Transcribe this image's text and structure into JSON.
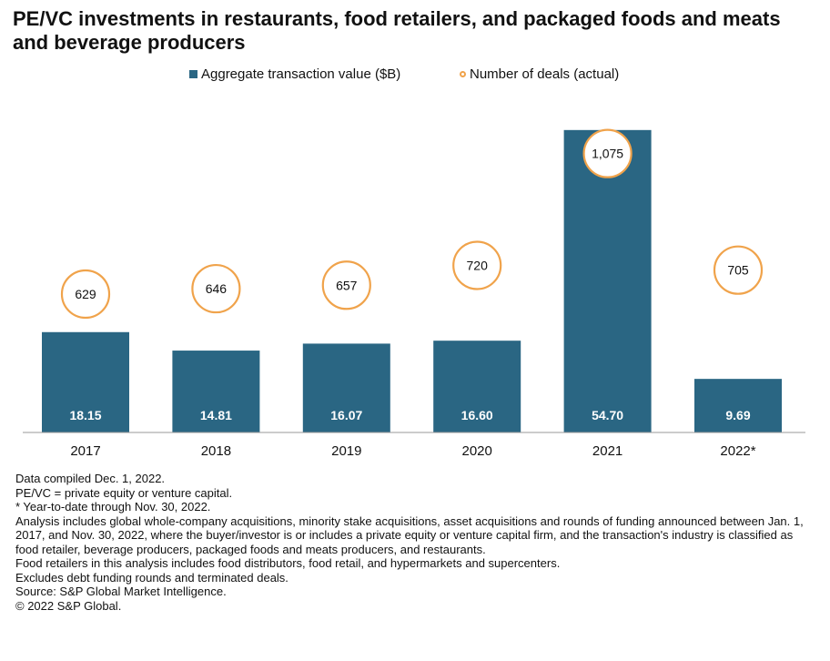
{
  "title": "PE/VC investments in restaurants, food retailers, and packaged foods and meats and beverage producers",
  "colors": {
    "bar": "#2a6683",
    "circle": "#f0a34b",
    "bar_label": "#ffffff",
    "text": "#111111"
  },
  "chart_data": {
    "type": "bar",
    "title": "PE/VC investments in restaurants, food retailers, and packaged foods and meats and beverage producers",
    "categories": [
      "2017",
      "2018",
      "2019",
      "2020",
      "2021",
      "2022*"
    ],
    "series": [
      {
        "name": "Aggregate transaction value ($B)",
        "kind": "bar",
        "values": [
          18.15,
          14.81,
          16.07,
          16.6,
          54.7,
          9.69
        ],
        "labels": [
          "18.15",
          "14.81",
          "16.07",
          "16.60",
          "54.70",
          "9.69"
        ]
      },
      {
        "name": "Number of deals (actual)",
        "kind": "circle-marker",
        "values": [
          629,
          646,
          657,
          720,
          1075,
          705
        ],
        "labels": [
          "629",
          "646",
          "657",
          "720",
          "1,075",
          "705"
        ]
      }
    ],
    "legend": [
      "Aggregate transaction value ($B)",
      "Number of deals (actual)"
    ],
    "legend_position": "top-center",
    "ylim_bar": [
      0,
      55
    ],
    "ylim_deals": [
      0,
      1100
    ],
    "grid": false
  },
  "notes": [
    "Data compiled Dec. 1, 2022.",
    "PE/VC = private equity or venture capital.",
    "* Year-to-date through Nov. 30, 2022.",
    "Analysis includes global whole-company acquisitions, minority stake acquisitions, asset acquisitions and rounds of funding announced between Jan. 1, 2017, and Nov. 30, 2022, where the buyer/investor is or includes a private equity or venture capital firm, and the transaction's industry is classified as food retailer, beverage producers, packaged foods and meats producers, and restaurants.",
    "Food retailers in this analysis includes food distributors, food retail, and hypermarkets and supercenters.",
    "Excludes debt funding rounds and terminated deals.",
    "Source: S&P Global Market Intelligence.",
    "© 2022 S&P Global."
  ]
}
